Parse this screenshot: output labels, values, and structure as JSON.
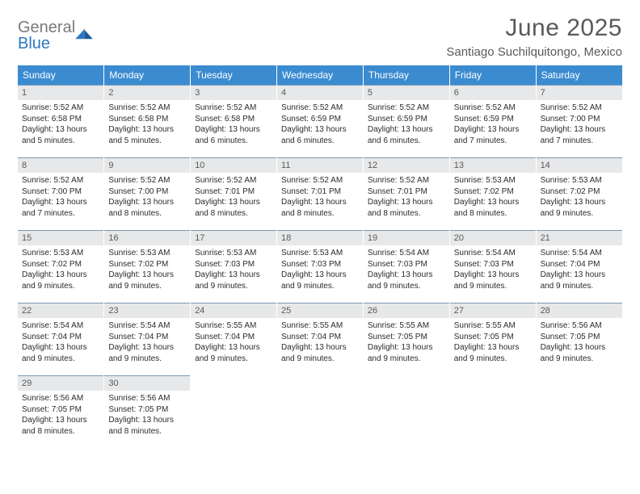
{
  "logo": {
    "gray": "General",
    "blue": "Blue"
  },
  "title": "June 2025",
  "location": "Santiago Suchilquitongo, Mexico",
  "colors": {
    "header_bg": "#3b8bd0",
    "header_fg": "#ffffff",
    "daynum_bg": "#e7e8e9",
    "daynum_fg": "#5a5a5a",
    "rule": "#7a99b5",
    "text": "#2b2b2b",
    "title_fg": "#5a5a5a"
  },
  "dow": [
    "Sunday",
    "Monday",
    "Tuesday",
    "Wednesday",
    "Thursday",
    "Friday",
    "Saturday"
  ],
  "weeks": [
    [
      {
        "n": "1",
        "sr": "5:52 AM",
        "ss": "6:58 PM",
        "dl": "13 hours and 5 minutes."
      },
      {
        "n": "2",
        "sr": "5:52 AM",
        "ss": "6:58 PM",
        "dl": "13 hours and 5 minutes."
      },
      {
        "n": "3",
        "sr": "5:52 AM",
        "ss": "6:58 PM",
        "dl": "13 hours and 6 minutes."
      },
      {
        "n": "4",
        "sr": "5:52 AM",
        "ss": "6:59 PM",
        "dl": "13 hours and 6 minutes."
      },
      {
        "n": "5",
        "sr": "5:52 AM",
        "ss": "6:59 PM",
        "dl": "13 hours and 6 minutes."
      },
      {
        "n": "6",
        "sr": "5:52 AM",
        "ss": "6:59 PM",
        "dl": "13 hours and 7 minutes."
      },
      {
        "n": "7",
        "sr": "5:52 AM",
        "ss": "7:00 PM",
        "dl": "13 hours and 7 minutes."
      }
    ],
    [
      {
        "n": "8",
        "sr": "5:52 AM",
        "ss": "7:00 PM",
        "dl": "13 hours and 7 minutes."
      },
      {
        "n": "9",
        "sr": "5:52 AM",
        "ss": "7:00 PM",
        "dl": "13 hours and 8 minutes."
      },
      {
        "n": "10",
        "sr": "5:52 AM",
        "ss": "7:01 PM",
        "dl": "13 hours and 8 minutes."
      },
      {
        "n": "11",
        "sr": "5:52 AM",
        "ss": "7:01 PM",
        "dl": "13 hours and 8 minutes."
      },
      {
        "n": "12",
        "sr": "5:52 AM",
        "ss": "7:01 PM",
        "dl": "13 hours and 8 minutes."
      },
      {
        "n": "13",
        "sr": "5:53 AM",
        "ss": "7:02 PM",
        "dl": "13 hours and 8 minutes."
      },
      {
        "n": "14",
        "sr": "5:53 AM",
        "ss": "7:02 PM",
        "dl": "13 hours and 9 minutes."
      }
    ],
    [
      {
        "n": "15",
        "sr": "5:53 AM",
        "ss": "7:02 PM",
        "dl": "13 hours and 9 minutes."
      },
      {
        "n": "16",
        "sr": "5:53 AM",
        "ss": "7:02 PM",
        "dl": "13 hours and 9 minutes."
      },
      {
        "n": "17",
        "sr": "5:53 AM",
        "ss": "7:03 PM",
        "dl": "13 hours and 9 minutes."
      },
      {
        "n": "18",
        "sr": "5:53 AM",
        "ss": "7:03 PM",
        "dl": "13 hours and 9 minutes."
      },
      {
        "n": "19",
        "sr": "5:54 AM",
        "ss": "7:03 PM",
        "dl": "13 hours and 9 minutes."
      },
      {
        "n": "20",
        "sr": "5:54 AM",
        "ss": "7:03 PM",
        "dl": "13 hours and 9 minutes."
      },
      {
        "n": "21",
        "sr": "5:54 AM",
        "ss": "7:04 PM",
        "dl": "13 hours and 9 minutes."
      }
    ],
    [
      {
        "n": "22",
        "sr": "5:54 AM",
        "ss": "7:04 PM",
        "dl": "13 hours and 9 minutes."
      },
      {
        "n": "23",
        "sr": "5:54 AM",
        "ss": "7:04 PM",
        "dl": "13 hours and 9 minutes."
      },
      {
        "n": "24",
        "sr": "5:55 AM",
        "ss": "7:04 PM",
        "dl": "13 hours and 9 minutes."
      },
      {
        "n": "25",
        "sr": "5:55 AM",
        "ss": "7:04 PM",
        "dl": "13 hours and 9 minutes."
      },
      {
        "n": "26",
        "sr": "5:55 AM",
        "ss": "7:05 PM",
        "dl": "13 hours and 9 minutes."
      },
      {
        "n": "27",
        "sr": "5:55 AM",
        "ss": "7:05 PM",
        "dl": "13 hours and 9 minutes."
      },
      {
        "n": "28",
        "sr": "5:56 AM",
        "ss": "7:05 PM",
        "dl": "13 hours and 9 minutes."
      }
    ],
    [
      {
        "n": "29",
        "sr": "5:56 AM",
        "ss": "7:05 PM",
        "dl": "13 hours and 8 minutes."
      },
      {
        "n": "30",
        "sr": "5:56 AM",
        "ss": "7:05 PM",
        "dl": "13 hours and 8 minutes."
      },
      null,
      null,
      null,
      null,
      null
    ]
  ],
  "labels": {
    "sunrise": "Sunrise: ",
    "sunset": "Sunset: ",
    "daylight": "Daylight: "
  }
}
